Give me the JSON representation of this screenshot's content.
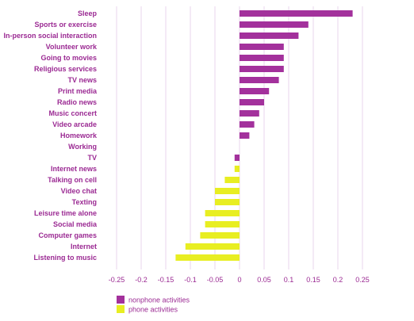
{
  "chart_data": {
    "type": "bar",
    "orientation": "horizontal",
    "categories": [
      "Sleep",
      "Sports or exercise",
      "In-person social interaction",
      "Volunteer work",
      "Going to movies",
      "Religious services",
      "TV news",
      "Print media",
      "Radio news",
      "Music concert",
      "Video arcade",
      "Homework",
      "Working",
      "TV",
      "Internet news",
      "Talking on cell",
      "Video chat",
      "Texting",
      "Leisure time alone",
      "Social media",
      "Computer games",
      "Internet",
      "Listening to music"
    ],
    "values": [
      0.23,
      0.14,
      0.12,
      0.09,
      0.09,
      0.09,
      0.08,
      0.06,
      0.05,
      0.04,
      0.03,
      0.02,
      0.0,
      -0.01,
      -0.01,
      -0.03,
      -0.05,
      -0.05,
      -0.07,
      -0.07,
      -0.08,
      -0.11,
      -0.13
    ],
    "groups": [
      "nonphone",
      "nonphone",
      "nonphone",
      "nonphone",
      "nonphone",
      "nonphone",
      "nonphone",
      "nonphone",
      "nonphone",
      "nonphone",
      "nonphone",
      "nonphone",
      "nonphone",
      "nonphone",
      "phone",
      "phone",
      "phone",
      "phone",
      "phone",
      "phone",
      "phone",
      "phone",
      "phone"
    ],
    "xlim": [
      -0.25,
      0.25
    ],
    "xticks": [
      "-0.25",
      "-0.2",
      "-0.15",
      "-0.1",
      "-0.05",
      "0",
      "0.05",
      "0.1",
      "0.15",
      "0.2",
      "0.25"
    ],
    "xtick_values": [
      -0.25,
      -0.2,
      -0.15,
      -0.1,
      -0.05,
      0,
      0.05,
      0.1,
      0.15,
      0.2,
      0.25
    ],
    "grid": "vertical",
    "legend": [
      {
        "key": "nonphone",
        "label": "nonphone activities",
        "color": "#a3319c"
      },
      {
        "key": "phone",
        "label": "phone activities",
        "color": "#e8ee22"
      }
    ],
    "legend_position": "bottom-left"
  }
}
